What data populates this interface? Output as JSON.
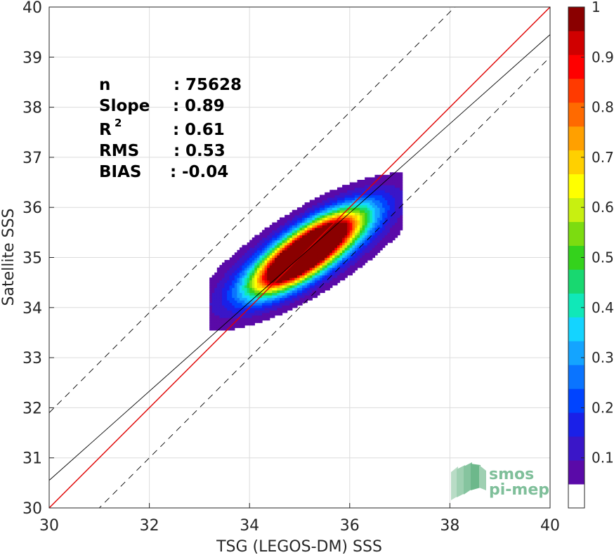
{
  "chart_data": {
    "type": "filled-contour",
    "xlabel": "TSG (LEGOS-DM) SSS",
    "ylabel": "Satellite SSS",
    "xlim": [
      30,
      40
    ],
    "ylim": [
      30,
      40
    ],
    "xticks": [
      "30",
      "32",
      "34",
      "36",
      "38",
      "40"
    ],
    "yticks": [
      "30",
      "31",
      "32",
      "33",
      "34",
      "35",
      "36",
      "37",
      "38",
      "39",
      "40"
    ],
    "grid": true,
    "stats": [
      {
        "label": "n",
        "sep": ":",
        "value": "75628"
      },
      {
        "label": "Slope",
        "sep": ":",
        "value": "0.89"
      },
      {
        "label": "R",
        "sup": "2",
        "sep": ":",
        "value": "0.61"
      },
      {
        "label": "RMS",
        "sep": ":",
        "value": "0.53"
      },
      {
        "label": "BIAS",
        "sep": ":",
        "value": "-0.04"
      }
    ],
    "reference_lines": [
      {
        "name": "1:1",
        "slope": 1.0,
        "intercept": 0.0,
        "color": "#e00000",
        "style": "solid"
      },
      {
        "name": "fit",
        "slope": 0.89,
        "intercept": 3.85,
        "color": "#000000",
        "style": "solid"
      },
      {
        "name": "upper",
        "slope": 1.0,
        "intercept": 1.9,
        "color": "#000000",
        "style": "dashed"
      },
      {
        "name": "lower",
        "slope": 1.0,
        "intercept": -1.0,
        "color": "#000000",
        "style": "dashed"
      }
    ],
    "density_peaks": [
      {
        "x": 34.85,
        "y": 34.85
      },
      {
        "x": 35.45,
        "y": 35.38
      }
    ],
    "contour_levels": [
      0.05,
      0.1,
      0.15,
      0.2,
      0.25,
      0.3,
      0.35,
      0.4,
      0.45,
      0.5,
      0.55,
      0.6,
      0.65,
      0.7,
      0.75,
      0.8,
      0.85,
      0.9,
      0.95
    ],
    "colorbar": {
      "min": 0,
      "max": 1,
      "ticks": [
        "0.1",
        "0.2",
        "0.3",
        "0.4",
        "0.5",
        "0.6",
        "0.7",
        "0.8",
        "0.9",
        "1"
      ],
      "colors": [
        "#ffffff",
        "#5a0aa8",
        "#3a16c8",
        "#1a20e8",
        "#0044ff",
        "#0a74ff",
        "#14a4ff",
        "#14d4ff",
        "#10e8b8",
        "#18d870",
        "#34d21c",
        "#7cdc10",
        "#c8f010",
        "#ffff00",
        "#ffd000",
        "#ffa000",
        "#ff6a00",
        "#ff3a00",
        "#ff0000",
        "#d00000",
        "#8a0000"
      ]
    }
  },
  "logo": {
    "line1": "smos",
    "line2": "pi-mep"
  }
}
